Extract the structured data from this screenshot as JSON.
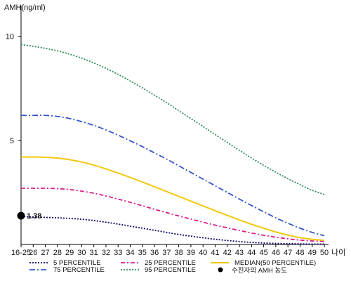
{
  "chart_data": {
    "type": "line",
    "ylabel": "AMH(ng/ml)",
    "xlabel": "나이",
    "ylim": [
      0,
      11
    ],
    "yticks": [
      5,
      10
    ],
    "categories": [
      "16-25",
      "26",
      "27",
      "28",
      "29",
      "30",
      "31",
      "32",
      "33",
      "34",
      "35",
      "36",
      "37",
      "38",
      "39",
      "40",
      "41",
      "42",
      "43",
      "44",
      "45",
      "46",
      "47",
      "48",
      "49",
      "50"
    ],
    "grid": false,
    "legend_position": "bottom",
    "series": [
      {
        "name": "5 PERCENTILE",
        "color": "#0b0b66",
        "dash": "2,2",
        "values": [
          1.35,
          1.32,
          1.3,
          1.28,
          1.25,
          1.21,
          1.15,
          1.07,
          0.98,
          0.88,
          0.78,
          0.68,
          0.58,
          0.48,
          0.4,
          0.32,
          0.25,
          0.19,
          0.14,
          0.1,
          0.07,
          0.05,
          0.04,
          0.03,
          0.02,
          0.02
        ]
      },
      {
        "name": "25 PERCENTILE",
        "color": "#dd1c8c",
        "dash": "6,3,2,3",
        "values": [
          2.7,
          2.7,
          2.7,
          2.68,
          2.64,
          2.56,
          2.46,
          2.33,
          2.18,
          2.02,
          1.86,
          1.69,
          1.53,
          1.37,
          1.22,
          1.07,
          0.93,
          0.8,
          0.67,
          0.55,
          0.44,
          0.35,
          0.27,
          0.21,
          0.17,
          0.15
        ]
      },
      {
        "name": "MEDIAN(50 PERCENTILE)",
        "color": "#f2c80f",
        "dash": "",
        "values": [
          4.2,
          4.2,
          4.19,
          4.15,
          4.07,
          3.96,
          3.81,
          3.63,
          3.43,
          3.22,
          3.0,
          2.77,
          2.54,
          2.31,
          2.08,
          1.85,
          1.62,
          1.4,
          1.18,
          0.97,
          0.78,
          0.6,
          0.45,
          0.33,
          0.25,
          0.2
        ]
      },
      {
        "name": "75 PERCENTILE",
        "color": "#3355cc",
        "dash": "8,3,2,3",
        "values": [
          6.2,
          6.2,
          6.2,
          6.15,
          6.05,
          5.9,
          5.72,
          5.5,
          5.25,
          4.98,
          4.7,
          4.4,
          4.1,
          3.78,
          3.46,
          3.14,
          2.82,
          2.5,
          2.18,
          1.87,
          1.57,
          1.28,
          1.02,
          0.78,
          0.58,
          0.42
        ]
      },
      {
        "name": "95 PERCENTILE",
        "color": "#2e8b57",
        "dash": "2,2",
        "values": [
          9.6,
          9.52,
          9.42,
          9.3,
          9.14,
          8.95,
          8.72,
          8.46,
          8.17,
          7.85,
          7.52,
          7.17,
          6.81,
          6.43,
          6.05,
          5.67,
          5.28,
          4.9,
          4.52,
          4.15,
          3.8,
          3.47,
          3.16,
          2.87,
          2.6,
          2.4
        ]
      }
    ],
    "marker": {
      "name": "수진자의 AMH 농도",
      "category": "16-25",
      "value": 1.38,
      "label": "1.38",
      "color": "#000000"
    }
  }
}
